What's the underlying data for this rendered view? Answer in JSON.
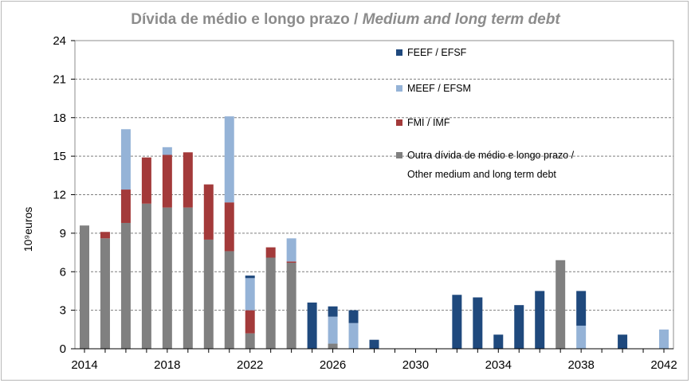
{
  "chart_data": {
    "type": "bar",
    "stacked": true,
    "title_pt": "Dívida de médio e longo prazo /",
    "title_en": "Medium and long term debt",
    "ylabel": "10⁹euros",
    "xlabel": "",
    "ylim": [
      0,
      24
    ],
    "yticks": [
      0,
      3,
      6,
      9,
      12,
      15,
      18,
      21,
      24
    ],
    "xlim": [
      2014,
      2042
    ],
    "xticks": [
      2014,
      2018,
      2022,
      2026,
      2030,
      2034,
      2038,
      2042
    ],
    "grid": true,
    "legend_position": "top-right",
    "categories": [
      2014,
      2015,
      2016,
      2017,
      2018,
      2019,
      2020,
      2021,
      2022,
      2023,
      2024,
      2025,
      2026,
      2027,
      2028,
      2029,
      2030,
      2031,
      2032,
      2033,
      2034,
      2035,
      2036,
      2037,
      2038,
      2039,
      2040,
      2041,
      2042
    ],
    "series": [
      {
        "name": "Outra dívida de médio e longo prazo / Other medium and long term debt",
        "legend_lines": [
          "Outra dívida de médio e longo prazo /",
          "Other medium and long term debt"
        ],
        "color": "#808080",
        "values": [
          9.6,
          8.6,
          9.8,
          11.3,
          11.0,
          11.0,
          8.5,
          7.6,
          1.2,
          7.1,
          6.7,
          0,
          0.4,
          0,
          0,
          0,
          0,
          0,
          0,
          0,
          0,
          0,
          0,
          6.9,
          0,
          0,
          0,
          0,
          0
        ]
      },
      {
        "name": "FMI / IMF",
        "legend_lines": [
          "FMI / IMF"
        ],
        "color": "#a33a3a",
        "values": [
          0,
          0.5,
          2.6,
          3.6,
          4.1,
          4.3,
          4.3,
          3.8,
          1.8,
          0.8,
          0.1,
          0,
          0,
          0,
          0,
          0,
          0,
          0,
          0,
          0,
          0,
          0,
          0,
          0,
          0,
          0,
          0,
          0,
          0
        ]
      },
      {
        "name": "MEEF / EFSM",
        "legend_lines": [
          "MEEF / EFSM"
        ],
        "color": "#95b3d7",
        "values": [
          0,
          0,
          4.7,
          0,
          0.6,
          0,
          0,
          6.7,
          2.5,
          0,
          1.8,
          0,
          2.1,
          2.0,
          0,
          0,
          0,
          0,
          0,
          0,
          0,
          0,
          0,
          0,
          1.8,
          0,
          0,
          0,
          1.5
        ]
      },
      {
        "name": "FEEF / EFSF",
        "legend_lines": [
          "FEEF / EFSF"
        ],
        "color": "#1f497d",
        "values": [
          0,
          0,
          0,
          0,
          0,
          0,
          0,
          0,
          0.2,
          0,
          0,
          3.6,
          0.8,
          1.0,
          0.7,
          0,
          0,
          0,
          4.2,
          4.0,
          1.1,
          3.4,
          4.5,
          0,
          2.7,
          0,
          1.1,
          0,
          0
        ]
      }
    ]
  }
}
